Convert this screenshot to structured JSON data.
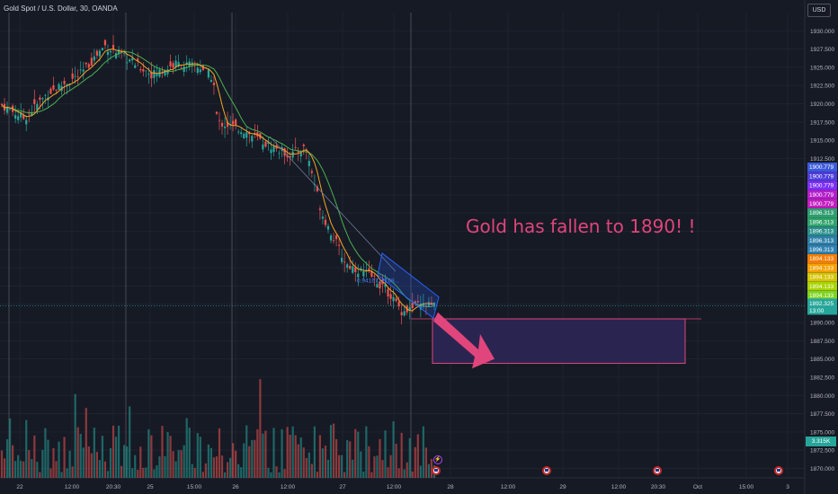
{
  "symbol_title": "Gold Spot / U.S. Dollar, 30, OANDA",
  "currency": "USD",
  "annotation": "Gold has fallen to 1890! !",
  "fib_label": "0.9416717169...",
  "chart_data": {
    "type": "candlestick",
    "y_axis": {
      "min": 1868.7,
      "max": 1932.5,
      "ticks": [
        "1930.000",
        "1927.500",
        "1925.000",
        "1922.500",
        "1920.000",
        "1917.500",
        "1915.000",
        "1912.500",
        "1910.000",
        "1907.500",
        "1905.000",
        "1902.500",
        "1900.000",
        "1897.500",
        "1895.000",
        "1892.500",
        "1890.000",
        "1887.500",
        "1885.000",
        "1882.500",
        "1880.000",
        "1877.500",
        "1875.000",
        "1872.500",
        "1870.000"
      ]
    },
    "x_axis": {
      "labels": [
        "22",
        "12:00",
        "20:30",
        "25",
        "15:00",
        "26",
        "12:00",
        "27",
        "12:00",
        "28",
        "12:00",
        "29",
        "12:00",
        "20:30",
        "Oct",
        "15:00",
        "3"
      ]
    },
    "price_path": [
      [
        0,
        1920.0
      ],
      [
        0.03,
        1918.0
      ],
      [
        0.06,
        1921.5
      ],
      [
        0.1,
        1924.0
      ],
      [
        0.13,
        1928.0
      ],
      [
        0.16,
        1926.0
      ],
      [
        0.19,
        1924.0
      ],
      [
        0.22,
        1925.5
      ],
      [
        0.25,
        1925.0
      ],
      [
        0.265,
        1923.5
      ],
      [
        0.27,
        1917.5
      ],
      [
        0.3,
        1916.5
      ],
      [
        0.33,
        1914.5
      ],
      [
        0.36,
        1913.0
      ],
      [
        0.38,
        1914.0
      ],
      [
        0.4,
        1905.0
      ],
      [
        0.43,
        1898.0
      ],
      [
        0.46,
        1896.5
      ],
      [
        0.48,
        1894.5
      ],
      [
        0.5,
        1891.5
      ],
      [
        0.52,
        1892.3
      ]
    ],
    "price_labels": [
      {
        "value": "1900.779",
        "color": "#3b5bdb"
      },
      {
        "value": "1900.779",
        "color": "#4c3ddb"
      },
      {
        "value": "1900.779",
        "color": "#7b2ff7"
      },
      {
        "value": "1900.779",
        "color": "#b51ecc"
      },
      {
        "value": "1900.779",
        "color": "#c21fbf"
      },
      {
        "value": "1896.313",
        "color": "#2e9e6e"
      },
      {
        "value": "1896.313",
        "color": "#2ea36b"
      },
      {
        "value": "1896.313",
        "color": "#2a8f8a"
      },
      {
        "value": "1896.313",
        "color": "#2e7fa8"
      },
      {
        "value": "1896.313",
        "color": "#2f80b0"
      },
      {
        "value": "1894.133",
        "color": "#f57c00"
      },
      {
        "value": "1894.133",
        "color": "#f5a000"
      },
      {
        "value": "1894.133",
        "color": "#d4c400"
      },
      {
        "value": "1894.133",
        "color": "#a8d400"
      },
      {
        "value": "1894.133",
        "color": "#7ed321"
      }
    ],
    "current_price": "1892.325",
    "countdown": "13:00",
    "current_price_color": "#26a69a",
    "volume_label": "3.315K",
    "target_zone": {
      "top": 1890.5,
      "bottom": 1884.4
    },
    "colors": {
      "up": "#26a69a",
      "down": "#ef5350",
      "ma_fast": "#f5a623",
      "ma_slow": "#4caf50",
      "zone_border": "#e0457b",
      "zone_fill": "#2a2550",
      "channel": "#2962ff"
    }
  },
  "event_markers": [
    "us-flag-icon",
    "us-flag-icon",
    "us-flag-icon",
    "us-flag-icon"
  ]
}
